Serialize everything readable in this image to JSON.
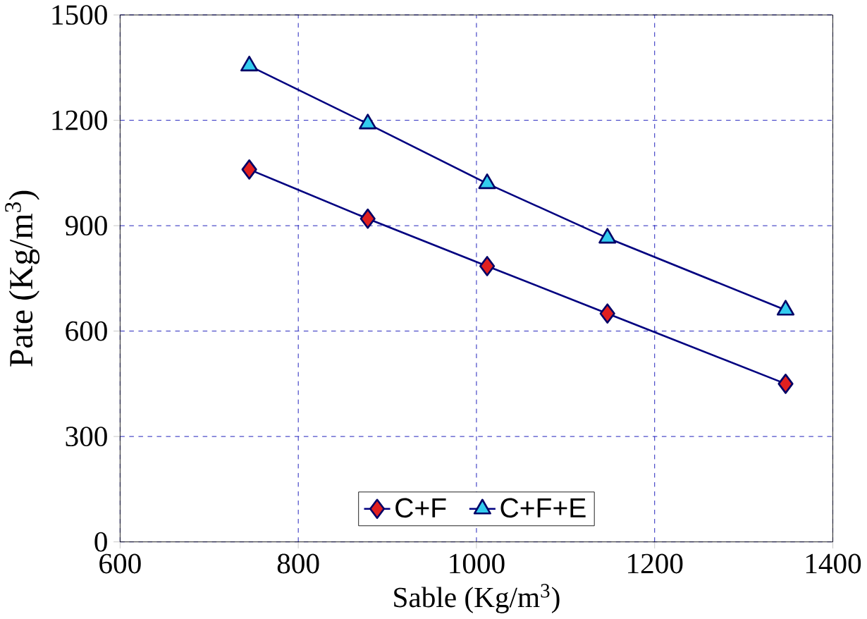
{
  "chart_data": {
    "type": "line",
    "xlabel": "Sable (Kg/m$^{3}$)",
    "ylabel": "Pate (Kg/m$^{3}$)",
    "xlim": [
      600,
      1400
    ],
    "xticks": [
      600,
      800,
      1000,
      1200,
      1400
    ],
    "ylim": [
      0,
      1500
    ],
    "yticks": [
      0,
      300,
      600,
      900,
      1200,
      1500
    ],
    "grid": true,
    "legend": "bottom",
    "line_style": "solid",
    "series": [
      {
        "name": "C+F",
        "color": "#e02020",
        "marker": "diamond",
        "x": [
          745,
          878,
          1012,
          1147,
          1347
        ],
        "values": [
          1060,
          920,
          785,
          650,
          450
        ]
      },
      {
        "name": "C+F+E",
        "color": "#33ccee",
        "marker": "triangle",
        "x": [
          745,
          878,
          1012,
          1147,
          1347
        ],
        "values": [
          1355,
          1190,
          1020,
          865,
          660
        ]
      }
    ]
  }
}
